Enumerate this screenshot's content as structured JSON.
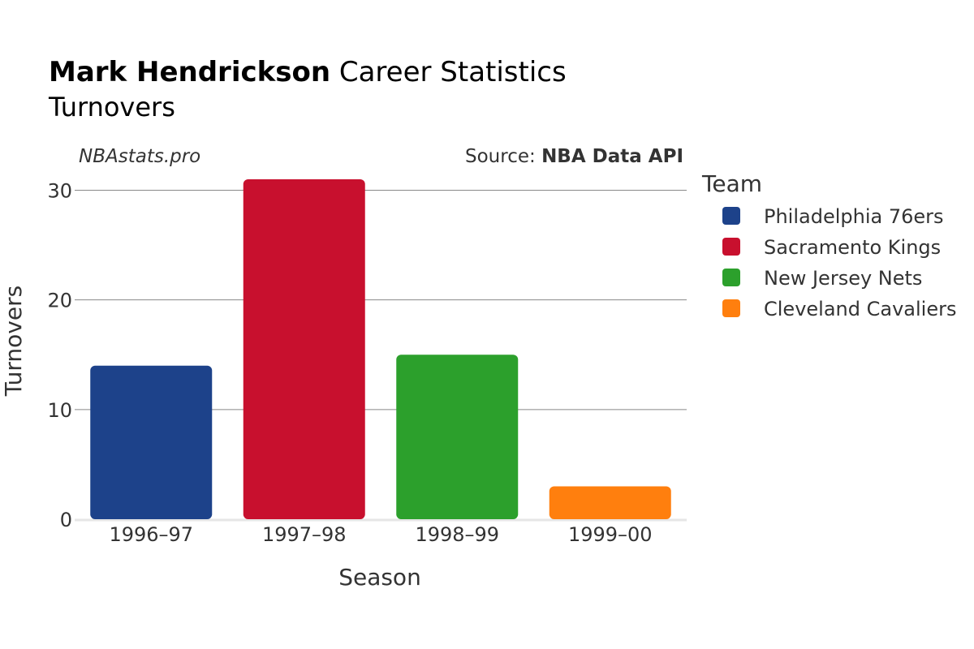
{
  "header": {
    "title_bold": "Mark Hendrickson",
    "title_rest": " Career Statistics",
    "subtitle": "Turnovers"
  },
  "credits": {
    "site": "NBAstats.pro",
    "source_prefix": "Source: ",
    "source_name": "NBA Data API"
  },
  "chart_data": {
    "type": "bar",
    "categories": [
      "1996–97",
      "1997–98",
      "1998–99",
      "1999–00"
    ],
    "values": [
      14,
      31,
      15,
      3
    ],
    "bar_teams": [
      "Philadelphia 76ers",
      "Sacramento Kings",
      "New Jersey Nets",
      "Cleveland Cavaliers"
    ],
    "xlabel": "Season",
    "ylabel": "Turnovers",
    "ylim": [
      0,
      31
    ],
    "yticks": [
      0,
      10,
      20,
      30
    ],
    "grid": true,
    "legend": {
      "title": "Team",
      "position": "right",
      "entries": [
        {
          "name": "Philadelphia 76ers",
          "color": "#1d428a"
        },
        {
          "name": "Sacramento Kings",
          "color": "#c8102e"
        },
        {
          "name": "New Jersey Nets",
          "color": "#2ca02c"
        },
        {
          "name": "Cleveland Cavaliers",
          "color": "#ff7f0e"
        }
      ]
    }
  }
}
